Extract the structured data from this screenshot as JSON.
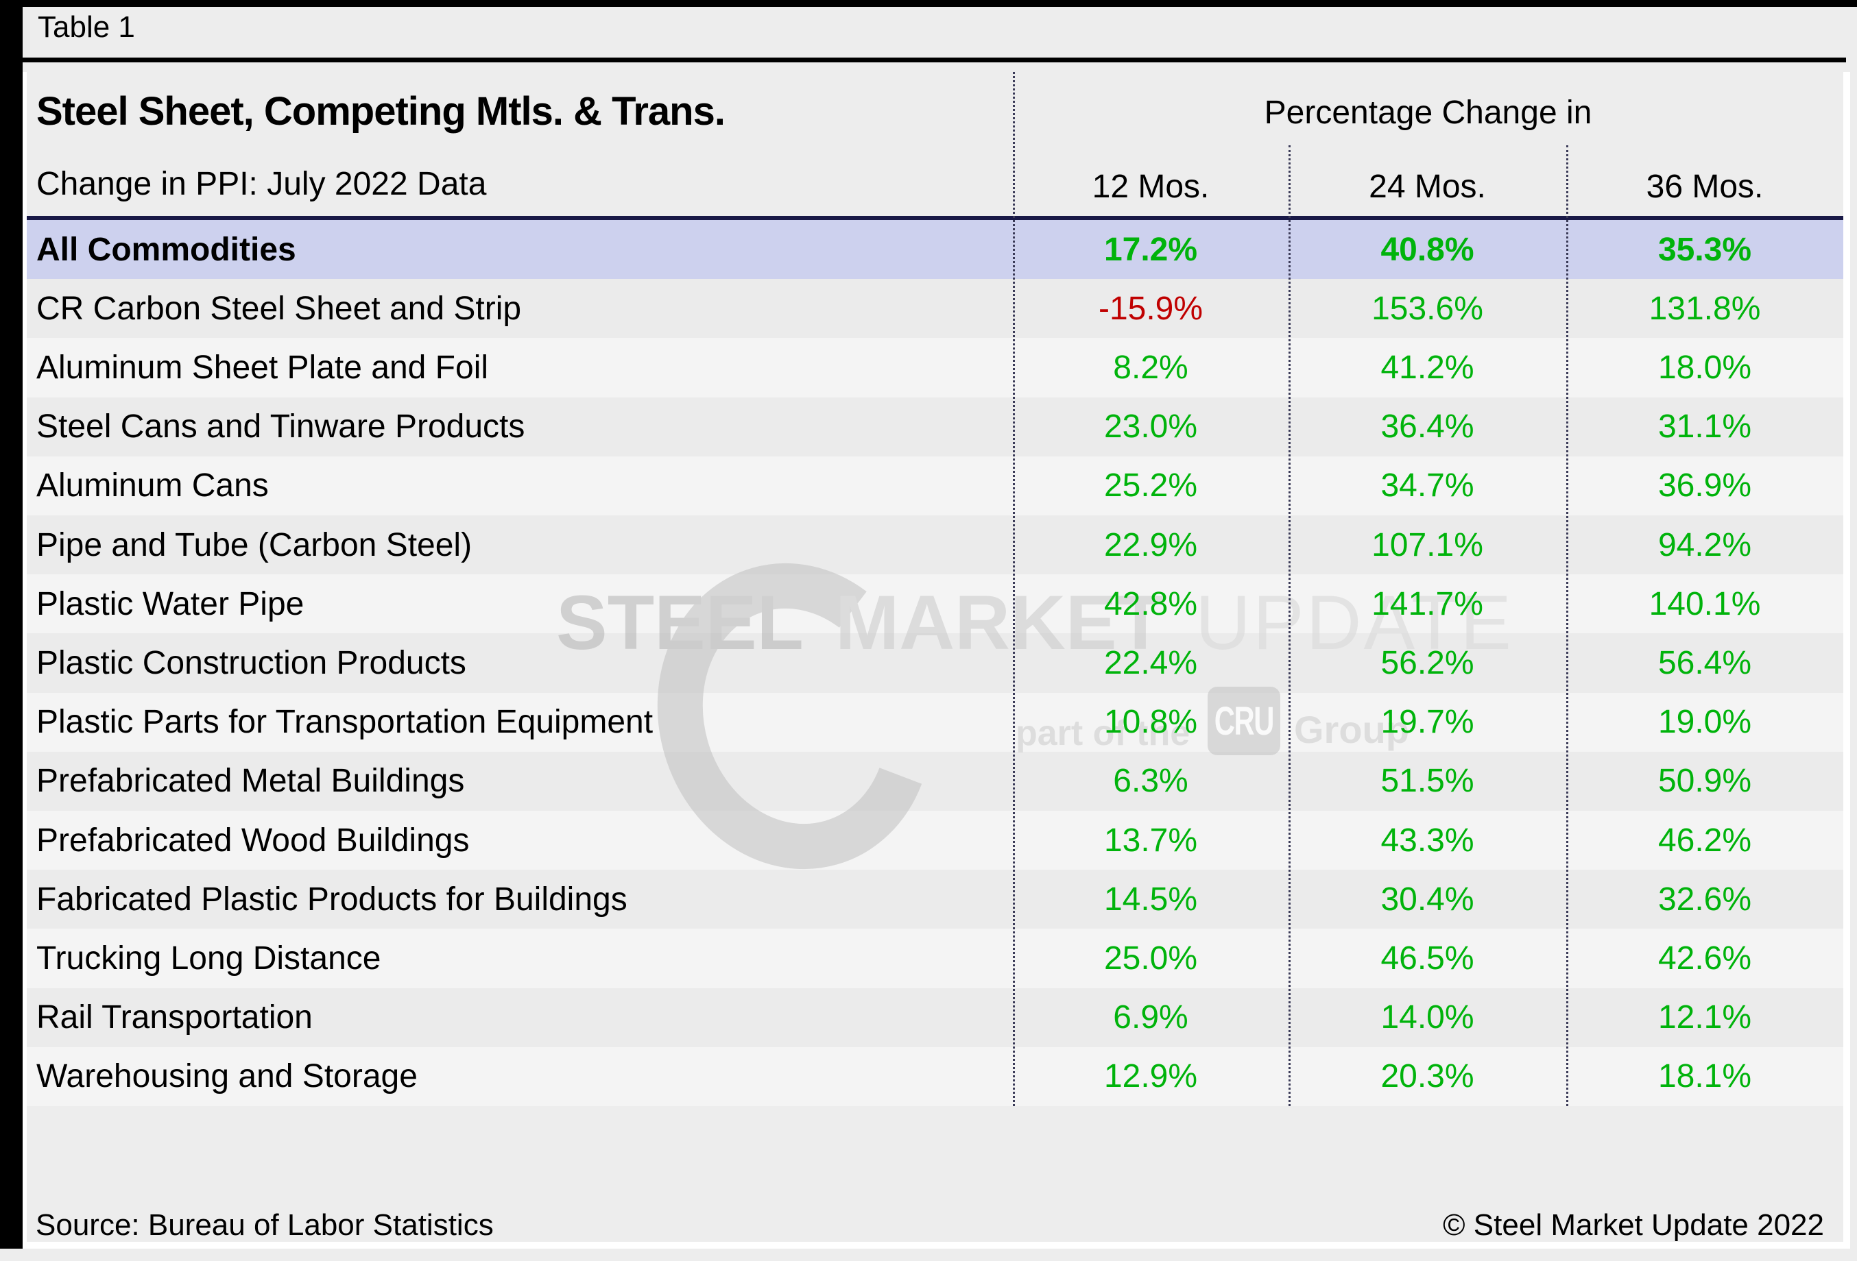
{
  "page": {
    "table_label": "Table 1"
  },
  "header": {
    "title": "Steel Sheet, Competing Mtls. & Trans.",
    "subtitle": "Change in PPI: July 2022 Data",
    "col_group": "Percentage Change in",
    "columns": [
      "12 Mos.",
      "24 Mos.",
      "36 Mos."
    ]
  },
  "rows": [
    {
      "label": "All Commodities",
      "values": [
        "17.2%",
        "40.8%",
        "35.3%"
      ],
      "highlight": true
    },
    {
      "label": "CR Carbon Steel Sheet and Strip",
      "values": [
        "-15.9%",
        "153.6%",
        "131.8%"
      ],
      "highlight": false
    },
    {
      "label": "Aluminum Sheet Plate and Foil",
      "values": [
        "8.2%",
        "41.2%",
        "18.0%"
      ],
      "highlight": false
    },
    {
      "label": "Steel Cans and Tinware Products",
      "values": [
        "23.0%",
        "36.4%",
        "31.1%"
      ],
      "highlight": false
    },
    {
      "label": "Aluminum Cans",
      "values": [
        "25.2%",
        "34.7%",
        "36.9%"
      ],
      "highlight": false
    },
    {
      "label": "Pipe and Tube (Carbon Steel)",
      "values": [
        "22.9%",
        "107.1%",
        "94.2%"
      ],
      "highlight": false
    },
    {
      "label": "Plastic Water Pipe",
      "values": [
        "42.8%",
        "141.7%",
        "140.1%"
      ],
      "highlight": false
    },
    {
      "label": "Plastic Construction Products",
      "values": [
        "22.4%",
        "56.2%",
        "56.4%"
      ],
      "highlight": false
    },
    {
      "label": "Plastic Parts for Transportation Equipment",
      "values": [
        "10.8%",
        "19.7%",
        "19.0%"
      ],
      "highlight": false
    },
    {
      "label": "Prefabricated Metal Buildings",
      "values": [
        "6.3%",
        "51.5%",
        "50.9%"
      ],
      "highlight": false
    },
    {
      "label": "Prefabricated Wood Buildings",
      "values": [
        "13.7%",
        "43.3%",
        "46.2%"
      ],
      "highlight": false
    },
    {
      "label": "Fabricated Plastic Products for Buildings",
      "values": [
        "14.5%",
        "30.4%",
        "32.6%"
      ],
      "highlight": false
    },
    {
      "label": "Trucking Long Distance",
      "values": [
        "25.0%",
        "46.5%",
        "42.6%"
      ],
      "highlight": false
    },
    {
      "label": "Rail Transportation",
      "values": [
        "6.9%",
        "14.0%",
        "12.1%"
      ],
      "highlight": false
    },
    {
      "label": "Warehousing and Storage",
      "values": [
        "12.9%",
        "20.3%",
        "18.1%"
      ],
      "highlight": false
    }
  ],
  "footer": {
    "source": "Source: Bureau of Labor Statistics",
    "copyright": "© Steel Market Update 2022"
  },
  "watermark": {
    "words": [
      "STEEL",
      "MARKET",
      "UPDATE"
    ],
    "tagline_prefix": "part of the",
    "tagline_box": "CRU",
    "tagline_suffix": "Group"
  },
  "colors": {
    "positive": "#00b30b",
    "negative": "#c00000",
    "highlight_row": "#cdd1ee",
    "navy_rule": "#191947",
    "row_dark": "#ebebeb",
    "row_light": "#f4f4f4",
    "canvas": "#ededed",
    "divider": "#3b3b58"
  },
  "chart_data": {
    "type": "table",
    "title": "Steel Sheet, Competing Mtls. & Trans.",
    "subtitle": "Change in PPI: July 2022 Data",
    "column_group_header": "Percentage Change in",
    "columns": [
      "12 Mos.",
      "24 Mos.",
      "36 Mos."
    ],
    "rows": [
      {
        "label": "All Commodities",
        "values_pct": [
          17.2,
          40.8,
          35.3
        ]
      },
      {
        "label": "CR Carbon Steel Sheet and Strip",
        "values_pct": [
          -15.9,
          153.6,
          131.8
        ]
      },
      {
        "label": "Aluminum Sheet Plate and Foil",
        "values_pct": [
          8.2,
          41.2,
          18.0
        ]
      },
      {
        "label": "Steel Cans and Tinware Products",
        "values_pct": [
          23.0,
          36.4,
          31.1
        ]
      },
      {
        "label": "Aluminum Cans",
        "values_pct": [
          25.2,
          34.7,
          36.9
        ]
      },
      {
        "label": "Pipe and Tube (Carbon Steel)",
        "values_pct": [
          22.9,
          107.1,
          94.2
        ]
      },
      {
        "label": "Plastic Water Pipe",
        "values_pct": [
          42.8,
          141.7,
          140.1
        ]
      },
      {
        "label": "Plastic Construction Products",
        "values_pct": [
          22.4,
          56.2,
          56.4
        ]
      },
      {
        "label": "Plastic Parts for Transportation Equipment",
        "values_pct": [
          10.8,
          19.7,
          19.0
        ]
      },
      {
        "label": "Prefabricated Metal Buildings",
        "values_pct": [
          6.3,
          51.5,
          50.9
        ]
      },
      {
        "label": "Prefabricated Wood Buildings",
        "values_pct": [
          13.7,
          43.3,
          46.2
        ]
      },
      {
        "label": "Fabricated Plastic Products for Buildings",
        "values_pct": [
          14.5,
          30.4,
          32.6
        ]
      },
      {
        "label": "Trucking Long Distance",
        "values_pct": [
          25.0,
          46.5,
          42.6
        ]
      },
      {
        "label": "Rail Transportation",
        "values_pct": [
          6.9,
          14.0,
          12.1
        ]
      },
      {
        "label": "Warehousing and Storage",
        "values_pct": [
          12.9,
          20.3,
          18.1
        ]
      }
    ],
    "source": "Source: Bureau of Labor Statistics",
    "value_color_positive": "#00b30b",
    "value_color_negative": "#c00000"
  }
}
